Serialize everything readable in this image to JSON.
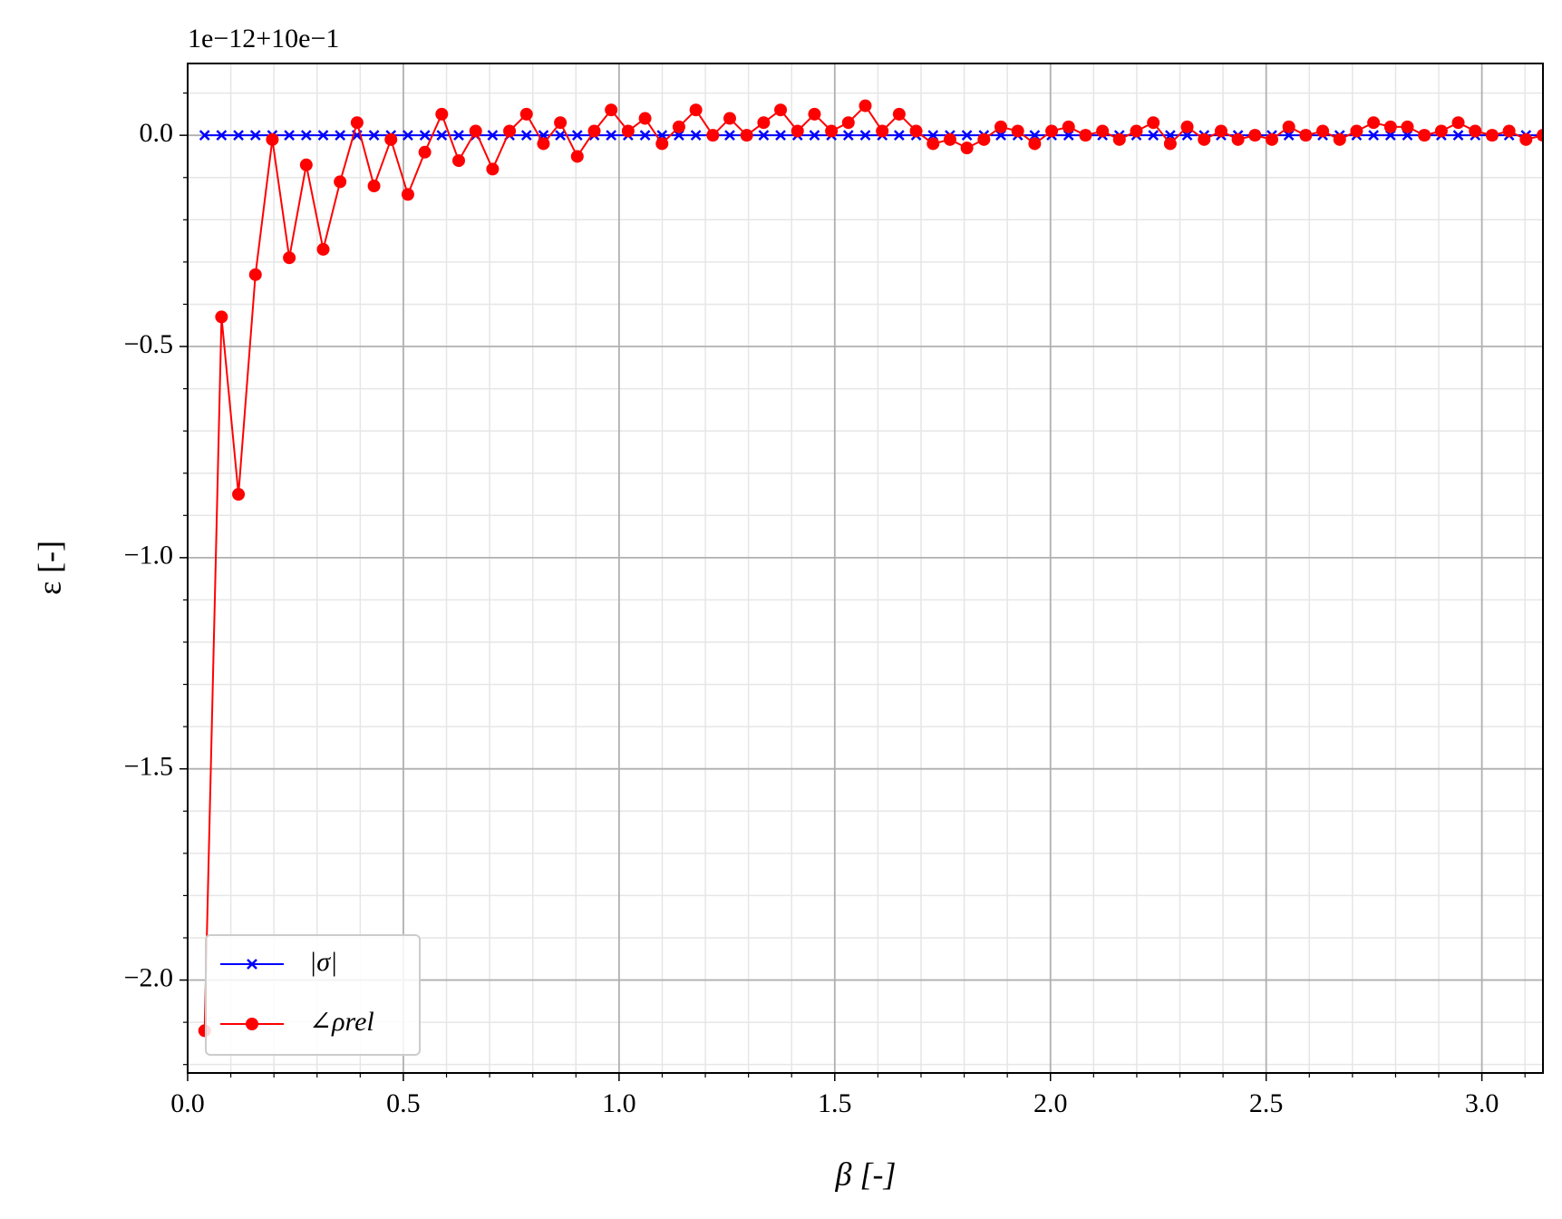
{
  "chart_data": {
    "type": "line",
    "offset_text": "1e−12+10e−1",
    "xlabel": "β [-]",
    "ylabel": "ε [-]",
    "xlim": [
      0,
      3.1416
    ],
    "ylim": [
      -2.22,
      0.17
    ],
    "xticks": [
      {
        "value": 0,
        "label": "0.0"
      },
      0.5,
      {
        "value": 1,
        "label": "1.0"
      },
      1.5,
      {
        "value": 2,
        "label": "2.0"
      },
      2.5,
      {
        "value": 3,
        "label": "3.0"
      }
    ],
    "yticks": [
      {
        "value": -2,
        "label": "−2.0"
      },
      {
        "value": -1.5,
        "label": "−1.5"
      },
      {
        "value": -1,
        "label": "−1.0"
      },
      {
        "value": -0.5,
        "label": "−0.5"
      },
      {
        "value": 0,
        "label": "0.0"
      }
    ],
    "xminorticks": [
      0.1,
      0.2,
      0.3,
      0.4,
      0.6,
      0.7,
      0.8,
      0.9,
      1.1,
      1.2,
      1.3,
      1.4,
      1.6,
      1.7,
      1.8,
      1.9,
      2.1,
      2.2,
      2.3,
      2.4,
      2.6,
      2.7,
      2.8,
      2.9,
      3.1
    ],
    "yminorticks": [
      -2.2,
      -2.1,
      -1.9,
      -1.8,
      -1.7,
      -1.6,
      -1.4,
      -1.3,
      -1.2,
      -1.1,
      -0.9,
      -0.8,
      -0.7,
      -0.6,
      -0.4,
      -0.3,
      -0.2,
      -0.1,
      0.1
    ],
    "grid": true,
    "legend": "lower left",
    "x": [
      0.0393,
      0.0785,
      0.1178,
      0.1571,
      0.1963,
      0.2356,
      0.2749,
      0.3142,
      0.3534,
      0.3927,
      0.432,
      0.4712,
      0.5105,
      0.5498,
      0.589,
      0.6283,
      0.6676,
      0.7069,
      0.7461,
      0.7854,
      0.8247,
      0.8639,
      0.9032,
      0.9425,
      0.9817,
      1.021,
      1.0603,
      1.0996,
      1.1388,
      1.1781,
      1.2174,
      1.2566,
      1.2959,
      1.3352,
      1.3744,
      1.4137,
      1.453,
      1.4923,
      1.5315,
      1.5708,
      1.6101,
      1.6493,
      1.6886,
      1.7279,
      1.7671,
      1.8064,
      1.8457,
      1.885,
      1.9242,
      1.9635,
      2.0028,
      2.042,
      2.0813,
      2.1206,
      2.1598,
      2.1991,
      2.2384,
      2.2777,
      2.3169,
      2.3562,
      2.3955,
      2.4347,
      2.474,
      2.5133,
      2.5525,
      2.5918,
      2.6311,
      2.6704,
      2.7096,
      2.7489,
      2.7882,
      2.8274,
      2.8667,
      2.906,
      2.9452,
      2.9845,
      3.0238,
      3.0631,
      3.1023,
      3.1416
    ],
    "series": [
      {
        "name": "|σ|",
        "color": "#0000ff",
        "marker": "x",
        "values": [
          0,
          0,
          0,
          0,
          0,
          0,
          0,
          0,
          0,
          0,
          0,
          0,
          0,
          0,
          0,
          0,
          0,
          0,
          0,
          0,
          0,
          0,
          0,
          0,
          0,
          0,
          0,
          0,
          0,
          0,
          0,
          0,
          0,
          0,
          0,
          0,
          0,
          0,
          0,
          0,
          0,
          0,
          0,
          0,
          0,
          0,
          0,
          0,
          0,
          0,
          0,
          0,
          0,
          0,
          0,
          0,
          0,
          0,
          0,
          0,
          0,
          0,
          0,
          0,
          0,
          0,
          0,
          0,
          0,
          0,
          0,
          0,
          0,
          0,
          0,
          0,
          0,
          0,
          0,
          0
        ]
      },
      {
        "name": "∠ρrel",
        "color": "#ff0000",
        "marker": "o",
        "values": [
          -2.12,
          -0.43,
          -0.85,
          -0.33,
          -0.01,
          -0.29,
          -0.07,
          -0.27,
          -0.11,
          0.03,
          -0.12,
          -0.01,
          -0.14,
          -0.04,
          0.05,
          -0.06,
          0.01,
          -0.08,
          0.01,
          0.05,
          -0.02,
          0.03,
          -0.05,
          0.01,
          0.06,
          0.01,
          0.04,
          -0.02,
          0.02,
          0.06,
          0.0,
          0.04,
          0.0,
          0.03,
          0.06,
          0.01,
          0.05,
          0.01,
          0.03,
          0.07,
          0.01,
          0.05,
          0.01,
          -0.02,
          -0.01,
          -0.03,
          -0.01,
          0.02,
          0.01,
          -0.02,
          0.01,
          0.02,
          0.0,
          0.01,
          -0.01,
          0.01,
          0.03,
          -0.02,
          0.02,
          -0.01,
          0.01,
          -0.01,
          0.0,
          -0.01,
          0.02,
          0.0,
          0.01,
          -0.01,
          0.01,
          0.03,
          0.02,
          0.02,
          0.0,
          0.01,
          0.03,
          0.01,
          0.0,
          0.01,
          -0.01,
          0.0
        ]
      }
    ]
  }
}
